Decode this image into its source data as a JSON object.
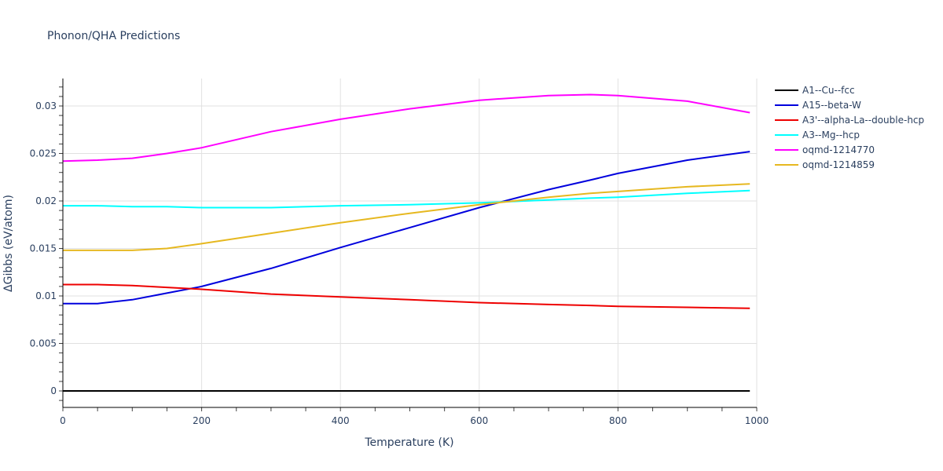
{
  "chart_data": {
    "type": "line",
    "title": "Phonon/QHA Predictions",
    "xlabel": "Temperature (K)",
    "ylabel": "ΔGibbs (eV/atom)",
    "xlim": [
      0,
      1000
    ],
    "ylim": [
      -0.0018,
      0.0329
    ],
    "xticks": [
      0,
      200,
      400,
      600,
      800,
      1000
    ],
    "xtick_labels": [
      "0",
      "200",
      "400",
      "600",
      "800",
      "1000"
    ],
    "yticks": [
      0,
      0.005,
      0.01,
      0.015,
      0.02,
      0.025,
      0.03
    ],
    "ytick_labels": [
      "0",
      "0.005",
      "0.01",
      "0.015",
      "0.02",
      "0.025",
      "0.03"
    ],
    "grid": true,
    "legend_position": "right",
    "x": [
      0,
      50,
      100,
      150,
      200,
      300,
      400,
      500,
      600,
      700,
      760,
      800,
      900,
      990
    ],
    "series": [
      {
        "name": "A1--Cu--fcc",
        "color": "#000000",
        "values": [
          0,
          0,
          0,
          0,
          0,
          0,
          0,
          0,
          0,
          0,
          0,
          0,
          0,
          0
        ]
      },
      {
        "name": "A15--beta-W",
        "color": "#0000dd",
        "values": [
          0.0092,
          0.0092,
          0.0096,
          0.0103,
          0.011,
          0.0129,
          0.0151,
          0.0172,
          0.0193,
          0.0212,
          0.0222,
          0.0229,
          0.0243,
          0.0252
        ]
      },
      {
        "name": "A3'--alpha-La--double-hcp",
        "color": "#ee0000",
        "values": [
          0.0112,
          0.0112,
          0.0111,
          0.0109,
          0.0107,
          0.0102,
          0.0099,
          0.0096,
          0.0093,
          0.0091,
          0.009,
          0.0089,
          0.0088,
          0.0087
        ]
      },
      {
        "name": "A3--Mg--hcp",
        "color": "#00ffff",
        "values": [
          0.0195,
          0.0195,
          0.0194,
          0.0194,
          0.0193,
          0.0193,
          0.0195,
          0.0196,
          0.0198,
          0.0201,
          0.0203,
          0.0204,
          0.0208,
          0.0211
        ]
      },
      {
        "name": "oqmd-1214770",
        "color": "#ff00ff",
        "values": [
          0.0242,
          0.0243,
          0.0245,
          0.025,
          0.0256,
          0.0273,
          0.0286,
          0.0297,
          0.0306,
          0.0311,
          0.0312,
          0.0311,
          0.0305,
          0.0293
        ]
      },
      {
        "name": "oqmd-1214859",
        "color": "#e6b820",
        "values": [
          0.0148,
          0.0148,
          0.0148,
          0.015,
          0.0155,
          0.0166,
          0.0177,
          0.0187,
          0.0196,
          0.0204,
          0.0208,
          0.021,
          0.0215,
          0.0218
        ]
      }
    ]
  }
}
